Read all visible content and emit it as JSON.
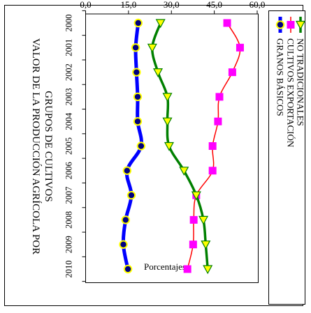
{
  "chart_data": {
    "type": "line",
    "title": "VALOR DE LA PRODUCCIÓN AGRÍCOLA POR GRUPOS DE CULTIVOS",
    "ylabel": "Porcentajes",
    "xlabel": "",
    "ylim": [
      0,
      60
    ],
    "yticks": [
      "0,0",
      "15,0",
      "30,0",
      "45,0",
      "60,0"
    ],
    "categories": [
      "2000",
      "2001",
      "2002",
      "2003",
      "2004",
      "2005",
      "2006",
      "2007",
      "2008",
      "2009",
      "2010"
    ],
    "grid": false,
    "legend_position": "bottom",
    "orientation": "rotated-90-clockwise",
    "series": [
      {
        "name": "GRANOS BÁSICOS",
        "color": "#0000ff",
        "marker": "circle",
        "marker_fill": "#000080",
        "marker_edge": "#ffff00",
        "values": [
          18.4,
          17.5,
          17.8,
          18.2,
          18.2,
          19.4,
          14.5,
          16.0,
          14.0,
          13.2,
          14.8
        ]
      },
      {
        "name": "CULTIVOS EXPORTACIÓN",
        "color": "#ff0000",
        "marker": "square",
        "marker_fill": "#ff00ff",
        "values": [
          49.5,
          54.0,
          51.3,
          46.8,
          46.3,
          44.4,
          44.4,
          38.7,
          37.8,
          37.6,
          35.6
        ]
      },
      {
        "name": "NO TRADICIONALES",
        "color": "#008000",
        "marker": "triangle",
        "marker_fill": "#ffff00",
        "values": [
          26.2,
          23.3,
          25.3,
          28.6,
          28.6,
          29.2,
          34.4,
          38.7,
          41.2,
          42.0,
          42.7
        ]
      }
    ]
  }
}
